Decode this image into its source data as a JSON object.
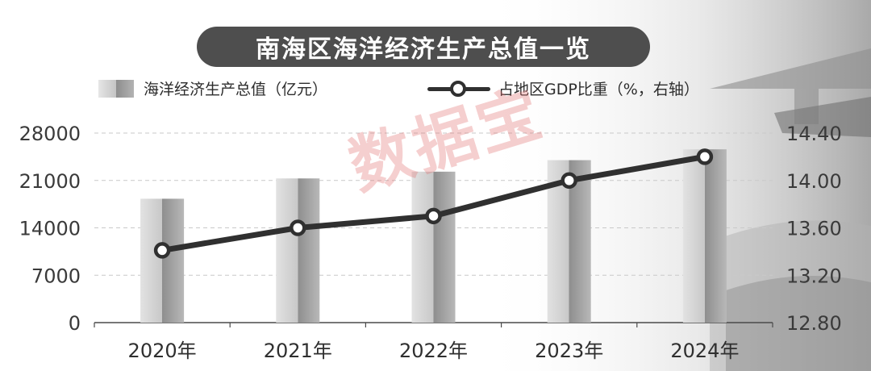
{
  "header": {
    "title": "南海区海洋经济生产总值一览"
  },
  "legend": {
    "bar_label": "海洋经济生产总值（亿元）",
    "line_label": "占地区GDP比重（%，右轴）"
  },
  "watermark": "数据宝",
  "chart_data": {
    "type": "bar+line",
    "title": "南海区海洋经济生产总值一览",
    "categories": [
      "2020年",
      "2021年",
      "2022年",
      "2023年",
      "2024年"
    ],
    "series": [
      {
        "name": "海洋经济生产总值（亿元）",
        "type": "bar",
        "axis": "left",
        "values": [
          18300,
          21300,
          22300,
          24000,
          25600
        ]
      },
      {
        "name": "占地区GDP比重（%，右轴）",
        "type": "line",
        "axis": "right",
        "values": [
          13.41,
          13.6,
          13.7,
          14.0,
          14.2
        ]
      }
    ],
    "left_axis": {
      "ylim": [
        0,
        28000
      ],
      "ticks": [
        0,
        7000,
        14000,
        21000,
        28000
      ],
      "tick_labels": [
        "0",
        "7000",
        "14000",
        "21000",
        "28000"
      ]
    },
    "right_axis": {
      "ylim": [
        12.8,
        14.4
      ],
      "ticks": [
        12.8,
        13.2,
        13.6,
        14.0,
        14.4
      ],
      "tick_labels": [
        "12.80",
        "13.20",
        "13.60",
        "14.00",
        "14.40"
      ]
    },
    "grid": "horizontal-dashed",
    "legend_position": "top",
    "colors": {
      "line": "#303030",
      "marker_fill": "#ffffff",
      "bar_light": "#dcdcdc",
      "bar_dark": "#8a8a8a",
      "title_bg": "#4e4e4e",
      "watermark": "#e06a6a"
    }
  }
}
